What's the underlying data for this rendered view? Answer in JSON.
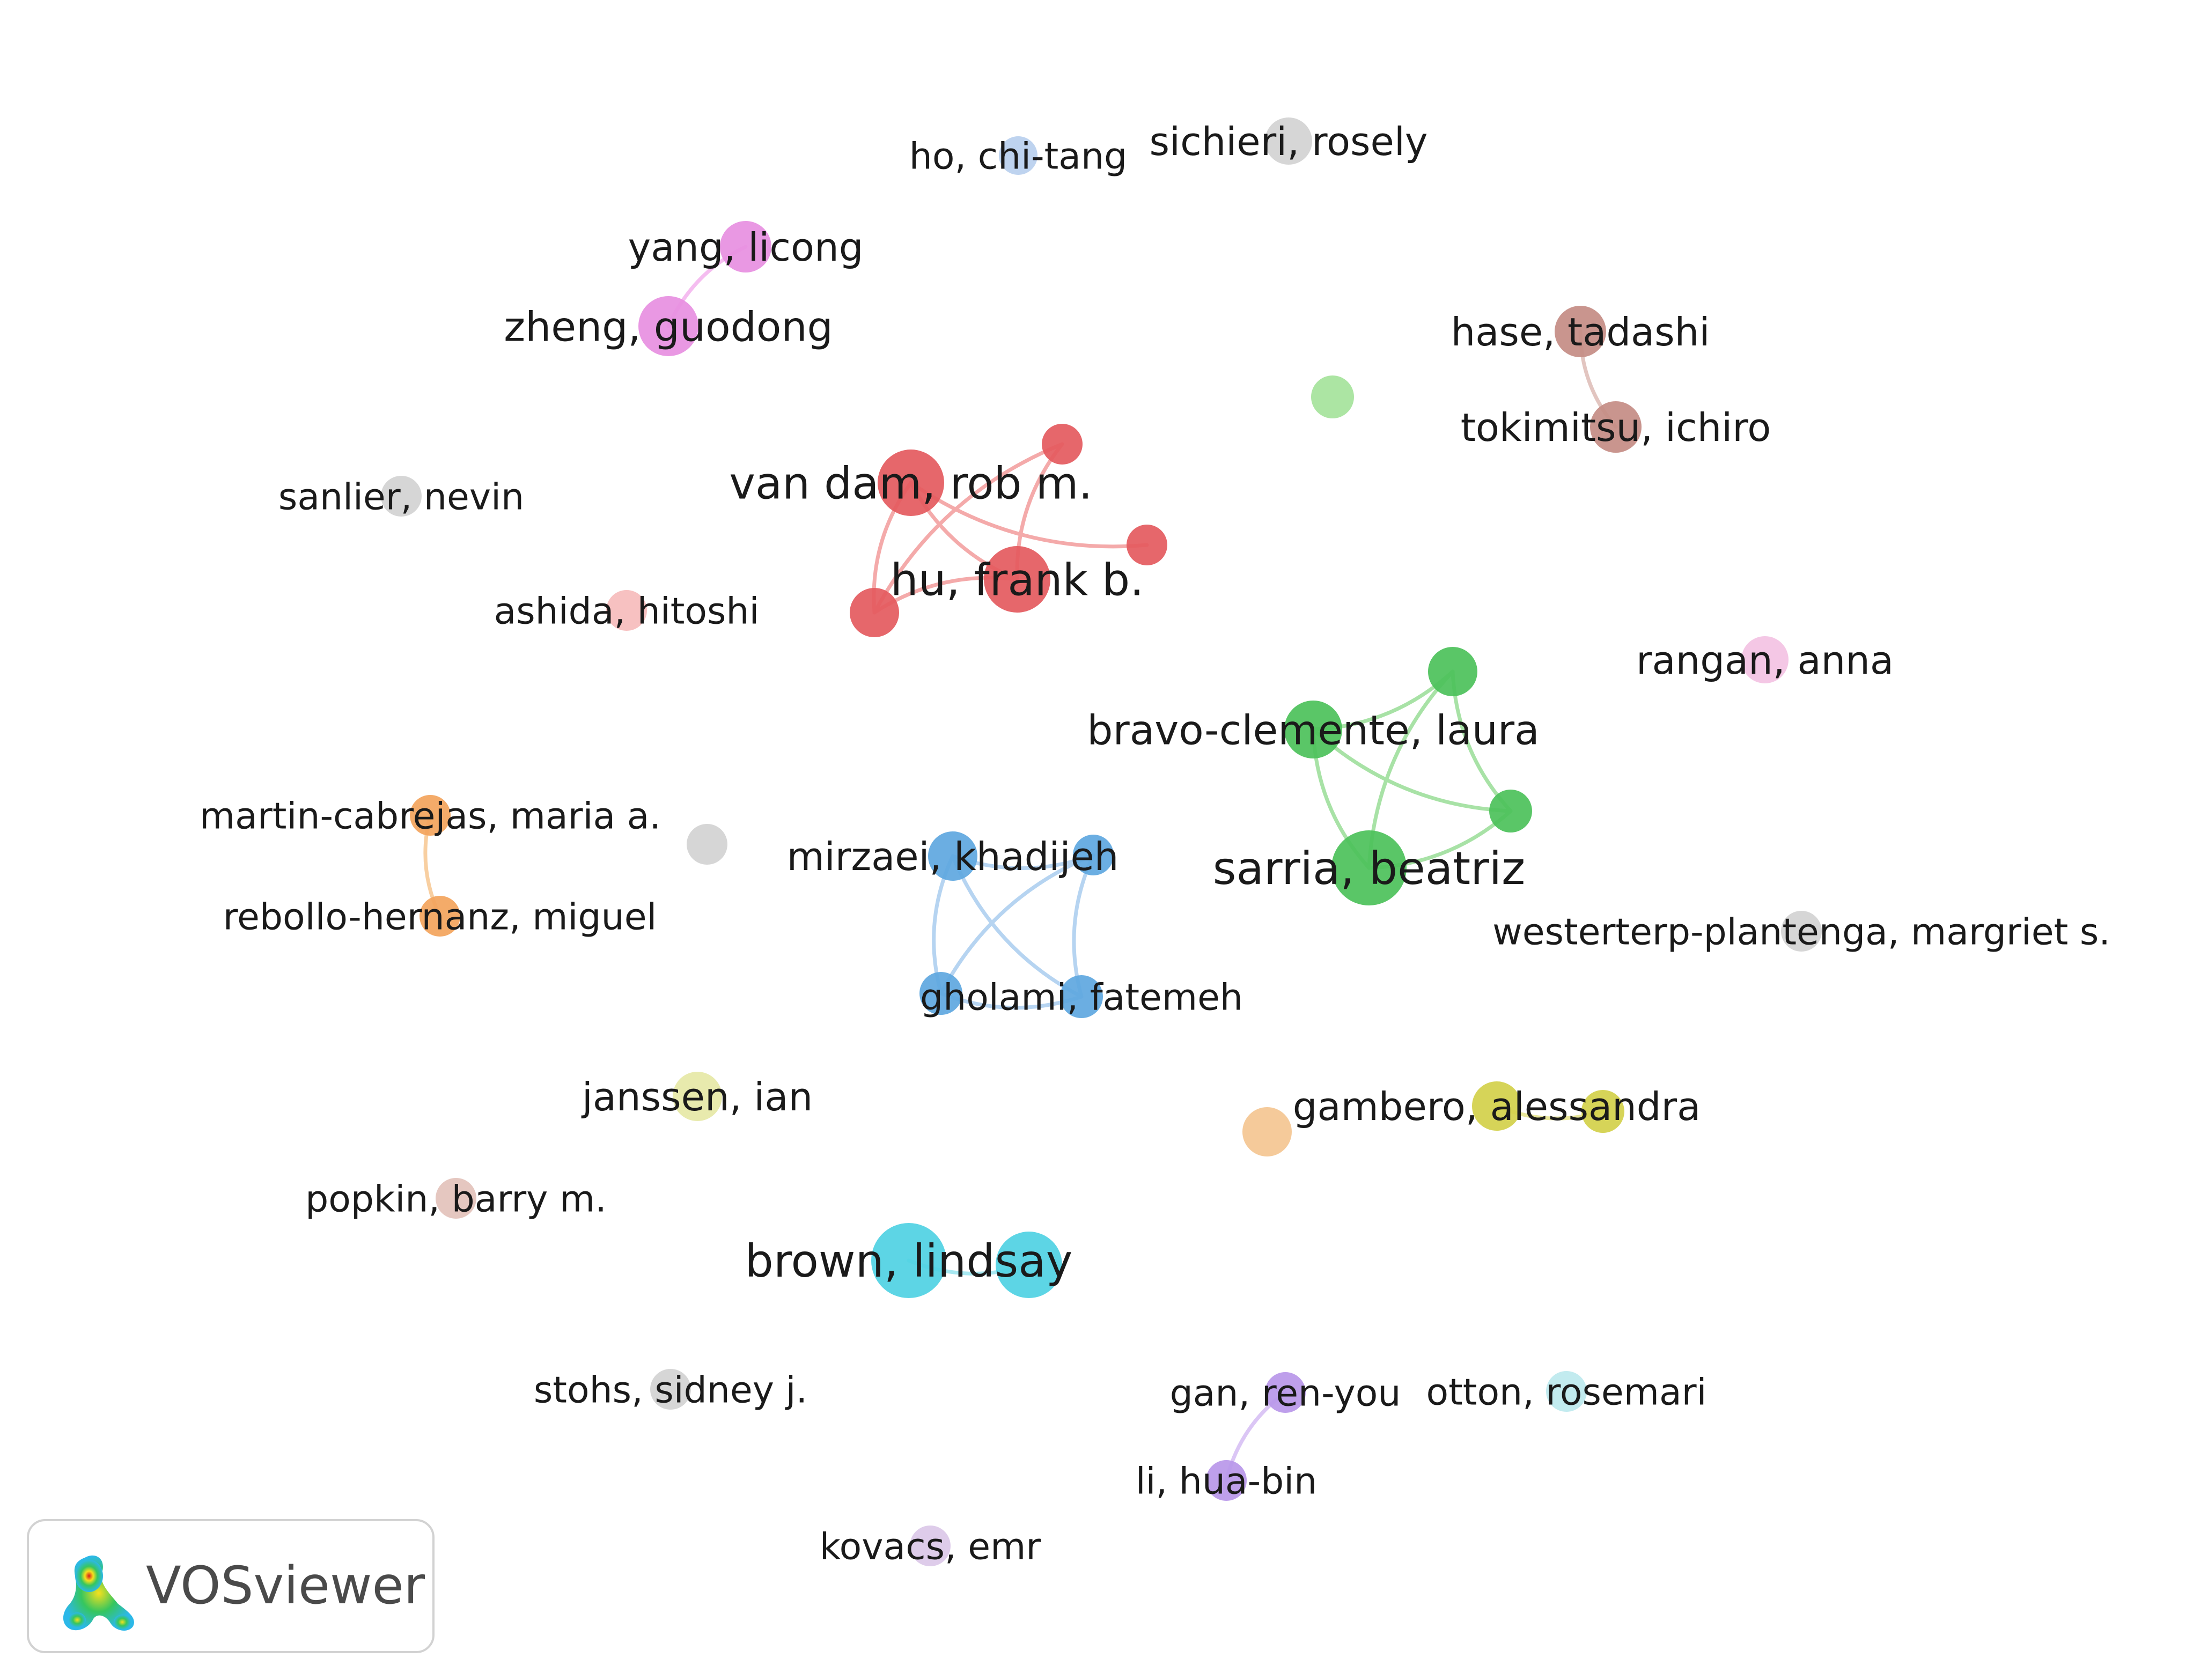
{
  "network": {
    "nodes": [
      {
        "id": "ho",
        "label": "ho, chi-tang",
        "color": "#b9cfee"
      },
      {
        "id": "sichieri",
        "label": "sichieri, rosely",
        "color": "#d3d3d3"
      },
      {
        "id": "yang",
        "label": "yang, licong",
        "color": "#e78fe1"
      },
      {
        "id": "zheng",
        "label": "zheng, guodong",
        "color": "#e78fe1"
      },
      {
        "id": "hase",
        "label": "hase, tadashi",
        "color": "#c48c84"
      },
      {
        "id": "lightgreen",
        "label": "",
        "color": "#a5e39b"
      },
      {
        "id": "tokimitsu",
        "label": "tokimitsu, ichiro",
        "color": "#c48c84"
      },
      {
        "id": "sanlier",
        "label": "sanlier, nevin",
        "color": "#d3d3d3"
      },
      {
        "id": "vandam",
        "label": "van dam, rob m.",
        "color": "#e45a5e"
      },
      {
        "id": "red1",
        "label": "",
        "color": "#e45a5e"
      },
      {
        "id": "red2",
        "label": "",
        "color": "#e45a5e"
      },
      {
        "id": "hu",
        "label": "hu, frank b.",
        "color": "#e45a5e"
      },
      {
        "id": "red3",
        "label": "",
        "color": "#e45a5e"
      },
      {
        "id": "ashida",
        "label": "ashida, hitoshi",
        "color": "#f6bcbc"
      },
      {
        "id": "rangan",
        "label": "rangan, anna",
        "color": "#f3c2e3"
      },
      {
        "id": "green1",
        "label": "",
        "color": "#4cc15a"
      },
      {
        "id": "bravo",
        "label": "bravo-clemente, laura",
        "color": "#4cc15a"
      },
      {
        "id": "green2",
        "label": "",
        "color": "#4cc15a"
      },
      {
        "id": "sarria",
        "label": "sarria, beatriz",
        "color": "#4cc15a"
      },
      {
        "id": "martin",
        "label": "martin-cabrejas, maria a.",
        "color": "#f3a45c"
      },
      {
        "id": "grey1",
        "label": "",
        "color": "#d3d3d3"
      },
      {
        "id": "mirzaei",
        "label": "mirzaei, khadijeh",
        "color": "#5ea7e0"
      },
      {
        "id": "blue1",
        "label": "",
        "color": "#5ea7e0"
      },
      {
        "id": "rebollo",
        "label": "rebollo-hernanz, miguel",
        "color": "#f3a45c"
      },
      {
        "id": "westerterp",
        "label": "westerterp-plantenga, margriet s.",
        "color": "#d3d3d3"
      },
      {
        "id": "blue2",
        "label": "",
        "color": "#5ea7e0"
      },
      {
        "id": "gholami",
        "label": "gholami, fatemeh",
        "color": "#5ea7e0"
      },
      {
        "id": "janssen",
        "label": "janssen, ian",
        "color": "#e6e8a6"
      },
      {
        "id": "gambero",
        "label": "gambero, alessandra",
        "color": "#d2d04a"
      },
      {
        "id": "yellow1",
        "label": "",
        "color": "#d2d04a"
      },
      {
        "id": "peach",
        "label": "",
        "color": "#f4c691"
      },
      {
        "id": "popkin",
        "label": "popkin, barry m.",
        "color": "#e3c2bb"
      },
      {
        "id": "brown",
        "label": "brown, lindsay",
        "color": "#4fd1e3"
      },
      {
        "id": "cyan1",
        "label": "",
        "color": "#4fd1e3"
      },
      {
        "id": "stohs",
        "label": "stohs, sidney j.",
        "color": "#d3d3d3"
      },
      {
        "id": "gan",
        "label": "gan, ren-you",
        "color": "#b997e9"
      },
      {
        "id": "otton",
        "label": "otton, rosemari",
        "color": "#bde9ee"
      },
      {
        "id": "li",
        "label": "li, hua-bin",
        "color": "#b997e9"
      },
      {
        "id": "kovacs",
        "label": "kovacs, emr",
        "color": "#dbc8e8"
      }
    ],
    "edges": [
      {
        "from": "yang",
        "to": "zheng",
        "color": "#f5bdf0"
      },
      {
        "from": "hase",
        "to": "tokimitsu",
        "color": "#e2c5c0"
      },
      {
        "from": "vandam",
        "to": "hu",
        "color": "#f4aaaa"
      },
      {
        "from": "vandam",
        "to": "red3",
        "color": "#f4aaaa"
      },
      {
        "from": "vandam",
        "to": "red2",
        "color": "#f4aaaa"
      },
      {
        "from": "red1",
        "to": "hu",
        "color": "#f4aaaa"
      },
      {
        "from": "red1",
        "to": "red3",
        "color": "#f4aaaa"
      },
      {
        "from": "hu",
        "to": "red3",
        "color": "#f4aaaa"
      },
      {
        "from": "bravo",
        "to": "green1",
        "color": "#a8e2a6"
      },
      {
        "from": "bravo",
        "to": "green2",
        "color": "#a8e2a6"
      },
      {
        "from": "bravo",
        "to": "sarria",
        "color": "#a8e2a6"
      },
      {
        "from": "green1",
        "to": "sarria",
        "color": "#a8e2a6"
      },
      {
        "from": "green1",
        "to": "green2",
        "color": "#a8e2a6"
      },
      {
        "from": "sarria",
        "to": "green2",
        "color": "#a8e2a6"
      },
      {
        "from": "martin",
        "to": "rebollo",
        "color": "#f8cfa1"
      },
      {
        "from": "mirzaei",
        "to": "blue1",
        "color": "#b6d4f1"
      },
      {
        "from": "mirzaei",
        "to": "blue2",
        "color": "#b6d4f1"
      },
      {
        "from": "mirzaei",
        "to": "gholami",
        "color": "#b6d4f1"
      },
      {
        "from": "blue1",
        "to": "blue2",
        "color": "#b6d4f1"
      },
      {
        "from": "blue1",
        "to": "gholami",
        "color": "#b6d4f1"
      },
      {
        "from": "blue2",
        "to": "gholami",
        "color": "#b6d4f1"
      },
      {
        "from": "gambero",
        "to": "yellow1",
        "color": "#e9e79b"
      },
      {
        "from": "brown",
        "to": "cyan1",
        "color": "#a7e8f1"
      },
      {
        "from": "gan",
        "to": "li",
        "color": "#dbc6f5"
      }
    ]
  },
  "branding": {
    "app_name": "VOSviewer",
    "logo_icon": "vosviewer-density-logo-icon"
  }
}
